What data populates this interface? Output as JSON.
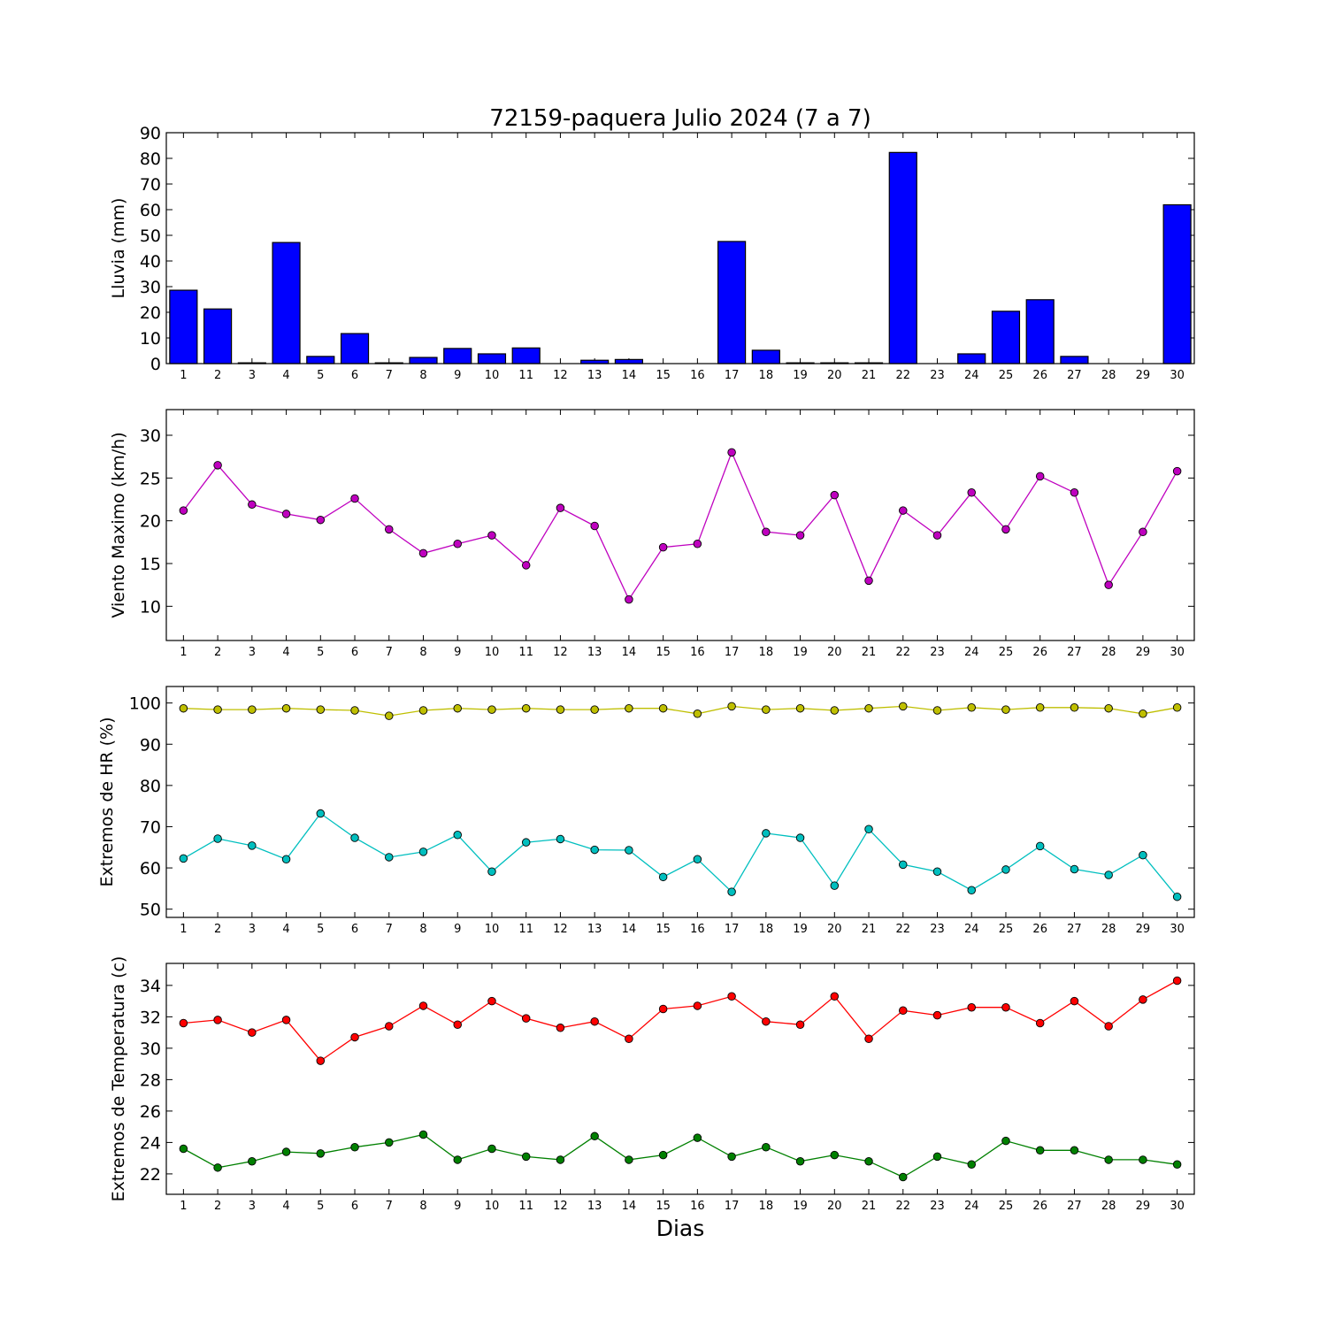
{
  "title": "72159-paquera Julio 2024  (7 a 7)",
  "xlabel": "Dias",
  "chart_data": [
    {
      "type": "bar",
      "ylabel": "Lluvia (mm)",
      "ylim": [
        0,
        90
      ],
      "yticks": [
        0,
        10,
        20,
        30,
        40,
        50,
        60,
        70,
        80,
        90
      ],
      "x": [
        1,
        2,
        3,
        4,
        5,
        6,
        7,
        8,
        9,
        10,
        11,
        12,
        13,
        14,
        15,
        16,
        17,
        18,
        19,
        20,
        21,
        22,
        23,
        24,
        25,
        26,
        27,
        28,
        29,
        30
      ],
      "series": [
        {
          "color": "#0000ff",
          "values": [
            28.6,
            21.3,
            0.3,
            47.2,
            2.8,
            11.7,
            0.3,
            2.4,
            5.9,
            3.8,
            6.1,
            0,
            1.3,
            1.6,
            0,
            0,
            47.6,
            5.2,
            0.3,
            0.3,
            0.3,
            82.3,
            0,
            3.8,
            20.4,
            24.9,
            2.8,
            0,
            0,
            61.9
          ]
        }
      ]
    },
    {
      "type": "line",
      "ylabel": "Viento Maximo (km/h)",
      "ylim": [
        6,
        33
      ],
      "yticks": [
        10,
        15,
        20,
        25,
        30
      ],
      "x": [
        1,
        2,
        3,
        4,
        5,
        6,
        7,
        8,
        9,
        10,
        11,
        12,
        13,
        14,
        15,
        16,
        17,
        18,
        19,
        20,
        21,
        22,
        23,
        24,
        25,
        26,
        27,
        28,
        29,
        30
      ],
      "series": [
        {
          "color": "#bf00bf",
          "values": [
            21.2,
            26.5,
            21.9,
            20.8,
            20.1,
            22.6,
            19.0,
            16.2,
            17.3,
            18.3,
            14.8,
            21.5,
            19.4,
            10.8,
            16.9,
            17.3,
            28.0,
            18.7,
            18.3,
            23.0,
            13.0,
            21.2,
            18.3,
            23.3,
            19.0,
            25.2,
            23.3,
            12.5,
            18.7,
            25.8
          ]
        }
      ]
    },
    {
      "type": "line",
      "ylabel": "Extremos de HR (%)",
      "ylim": [
        48,
        104
      ],
      "yticks": [
        50,
        60,
        70,
        80,
        90,
        100
      ],
      "x": [
        1,
        2,
        3,
        4,
        5,
        6,
        7,
        8,
        9,
        10,
        11,
        12,
        13,
        14,
        15,
        16,
        17,
        18,
        19,
        20,
        21,
        22,
        23,
        24,
        25,
        26,
        27,
        28,
        29,
        30
      ],
      "series": [
        {
          "color": "#bfbf00",
          "values": [
            98.7,
            98.4,
            98.4,
            98.7,
            98.4,
            98.2,
            96.9,
            98.2,
            98.7,
            98.4,
            98.7,
            98.4,
            98.4,
            98.7,
            98.7,
            97.4,
            99.2,
            98.4,
            98.7,
            98.2,
            98.7,
            99.2,
            98.2,
            98.9,
            98.4,
            98.9,
            98.9,
            98.7,
            97.4,
            98.9
          ]
        },
        {
          "color": "#00bfbf",
          "values": [
            62.3,
            67.1,
            65.4,
            62.1,
            73.2,
            67.3,
            62.6,
            63.9,
            68.0,
            59.1,
            66.2,
            67.0,
            64.4,
            64.3,
            57.8,
            62.1,
            54.2,
            68.4,
            67.3,
            55.7,
            69.4,
            60.8,
            59.1,
            54.6,
            59.6,
            65.3,
            59.7,
            58.3,
            63.1,
            53.0
          ]
        }
      ]
    },
    {
      "type": "line",
      "ylabel": "Extremos de Temperatura (c)",
      "ylim": [
        20.7,
        35.4
      ],
      "yticks": [
        22,
        24,
        26,
        28,
        30,
        32,
        34
      ],
      "x": [
        1,
        2,
        3,
        4,
        5,
        6,
        7,
        8,
        9,
        10,
        11,
        12,
        13,
        14,
        15,
        16,
        17,
        18,
        19,
        20,
        21,
        22,
        23,
        24,
        25,
        26,
        27,
        28,
        29,
        30
      ],
      "series": [
        {
          "color": "#ff0000",
          "values": [
            31.6,
            31.8,
            31.0,
            31.8,
            29.2,
            30.7,
            31.4,
            32.7,
            31.5,
            33.0,
            31.9,
            31.3,
            31.7,
            30.6,
            32.5,
            32.7,
            33.3,
            31.7,
            31.5,
            33.3,
            30.6,
            32.4,
            32.1,
            32.6,
            32.6,
            31.6,
            33.0,
            31.4,
            33.1,
            34.3
          ]
        },
        {
          "color": "#008000",
          "values": [
            23.6,
            22.4,
            22.8,
            23.4,
            23.3,
            23.7,
            24.0,
            24.5,
            22.9,
            23.6,
            23.1,
            22.9,
            24.4,
            22.9,
            23.2,
            24.3,
            23.1,
            23.7,
            22.8,
            23.2,
            22.8,
            21.8,
            23.1,
            22.6,
            24.1,
            23.5,
            23.5,
            22.9,
            22.9,
            22.6
          ]
        }
      ]
    }
  ]
}
